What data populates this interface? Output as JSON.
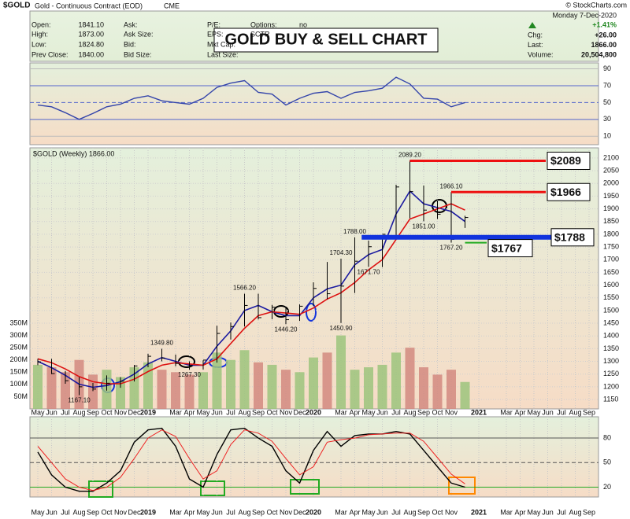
{
  "header": {
    "symbol": "$GOLD",
    "description": "Gold - Continuous Contract (EOD)",
    "exchange": "CME",
    "copyright": "© StockCharts.com",
    "date": "Monday  7-Dec-2020",
    "change_pct": "+1.41%",
    "banner": "GOLD BUY & SELL CHART",
    "info": [
      [
        {
          "label": "Open:",
          "value": "1841.10"
        },
        {
          "label": "High:",
          "value": "1873.00"
        },
        {
          "label": "Low:",
          "value": "1824.80"
        },
        {
          "label": "Prev Close:",
          "value": "1840.00"
        }
      ],
      [
        {
          "label": "Ask:"
        },
        {
          "label": "Ask Size:"
        },
        {
          "label": "Bid:"
        },
        {
          "label": "Bid Size:"
        }
      ],
      [
        {
          "label": "P/E:"
        },
        {
          "label": "EPS:"
        },
        {
          "label": "Mkt Cap:"
        },
        {
          "label": "Last Size:"
        }
      ],
      [
        {
          "label": "Options:",
          "value": "no"
        },
        {
          "label": "SCTR"
        }
      ]
    ],
    "quote": [
      {
        "label": "Chg:",
        "value": "+26.00"
      },
      {
        "label": "Last:",
        "value": "1866.00"
      },
      {
        "label": "Volume:",
        "value": "20,504,800"
      }
    ]
  },
  "chart_data": [
    {
      "type": "line",
      "ylim": [
        0,
        97
      ],
      "yticks": [
        90,
        70,
        50,
        30,
        10
      ],
      "series": [
        {
          "color": "#3344aa",
          "values": [
            47,
            45,
            38,
            30,
            37,
            45,
            48,
            55,
            58,
            52,
            50,
            48,
            55,
            68,
            73,
            76,
            62,
            60,
            47,
            55,
            61,
            63,
            55,
            62,
            64,
            67,
            80,
            72,
            55,
            54,
            45,
            50,
            null,
            null,
            null,
            null,
            null,
            null,
            null,
            null,
            null
          ]
        }
      ]
    },
    {
      "type": "ohlc",
      "title": "$GOLD (Weekly) 1866.00",
      "ylim": [
        1113,
        2140
      ],
      "yticks": [
        1150,
        1200,
        1250,
        1300,
        1350,
        1400,
        1450,
        1500,
        1550,
        1600,
        1650,
        1700,
        1750,
        1800,
        1850,
        1900,
        1950,
        2000,
        2050,
        2100
      ],
      "categories": [
        "May",
        "Jun",
        "Jul",
        "Aug",
        "Sep",
        "Oct",
        "Nov",
        "Dec",
        "2019",
        null,
        "Mar",
        "Apr",
        "May",
        "Jun",
        "Jul",
        "Aug",
        "Sep",
        "Oct",
        "Nov",
        "Dec",
        "2020",
        null,
        "Mar",
        "Apr",
        "May",
        "Jun",
        "Jul",
        "Aug",
        "Sep",
        "Oct",
        "Nov",
        null,
        "2021",
        null,
        "Mar",
        "Apr",
        "May",
        "Jun",
        "Jul",
        "Aug",
        "Sep"
      ],
      "high": [
        1310,
        1310,
        1262,
        1238,
        1215,
        1245,
        1238,
        1286,
        1330,
        1349.8,
        1327,
        1300,
        1304,
        1440,
        1453,
        1566.2,
        1566,
        1522,
        1515,
        1524,
        1611,
        1691,
        1704.3,
        1788,
        1775,
        1796,
        1995,
        2089.2,
        1992,
        1933,
        1966.1,
        1873,
        null,
        null,
        null,
        null,
        null,
        null,
        null,
        null,
        null
      ],
      "low": [
        1285,
        1250,
        1212,
        1167.1,
        1183,
        1185,
        1196,
        1221,
        1277,
        1300,
        1281,
        1267.3,
        1268,
        1295,
        1386,
        1437,
        1465,
        1466,
        1446.2,
        1459,
        1518,
        1545,
        1450.9,
        1569,
        1671.7,
        1671,
        1782,
        1863,
        1851,
        1860,
        1767.2,
        1824.8,
        null,
        null,
        null,
        null,
        null,
        null,
        null,
        null,
        null
      ],
      "close": [
        1298,
        1252,
        1224,
        1200,
        1191,
        1214,
        1222,
        1282,
        1320,
        1313,
        1292,
        1284,
        1305,
        1410,
        1437,
        1520,
        1472,
        1513,
        1464,
        1517,
        1587,
        1566,
        1596,
        1694,
        1751,
        1800,
        1986,
        1968,
        1895,
        1879,
        1780,
        1866,
        null,
        null,
        null,
        null,
        null,
        null,
        null,
        null,
        null
      ],
      "series": [
        {
          "color": "#1a1aa0",
          "values": [
            1300,
            1275,
            1245,
            1210,
            1198,
            1205,
            1220,
            1250,
            1290,
            1315,
            1300,
            1285,
            1285,
            1360,
            1420,
            1500,
            1520,
            1495,
            1480,
            1480,
            1550,
            1585,
            1600,
            1680,
            1720,
            1740,
            1880,
            1970,
            1920,
            1905,
            1890,
            1850,
            null,
            null,
            null,
            null,
            null,
            null,
            null,
            null,
            null
          ]
        },
        {
          "color": "#dd1111",
          "values": [
            1310,
            1295,
            1270,
            1240,
            1220,
            1212,
            1212,
            1230,
            1260,
            1285,
            1295,
            1290,
            1285,
            1310,
            1370,
            1430,
            1480,
            1495,
            1490,
            1485,
            1510,
            1545,
            1570,
            1610,
            1660,
            1700,
            1780,
            1860,
            1880,
            1900,
            1920,
            1895,
            null,
            null,
            null,
            null,
            null,
            null,
            null,
            null,
            null
          ]
        }
      ],
      "volume": {
        "ylim": [
          0,
          350000000
        ],
        "yticks": [
          {
            "value": 50000000,
            "label": "50M"
          },
          {
            "value": 100000000,
            "label": "100M"
          },
          {
            "value": 150000000,
            "label": "150M"
          },
          {
            "value": 200000000,
            "label": "200M"
          },
          {
            "value": 250000000,
            "label": "250M"
          },
          {
            "value": 300000000,
            "label": "300M"
          },
          {
            "value": 350000000,
            "label": "350M"
          }
        ],
        "values": [
          180000000,
          170000000,
          150000000,
          200000000,
          140000000,
          160000000,
          130000000,
          170000000,
          190000000,
          160000000,
          150000000,
          140000000,
          150000000,
          230000000,
          200000000,
          240000000,
          190000000,
          180000000,
          160000000,
          150000000,
          210000000,
          230000000,
          300000000,
          160000000,
          170000000,
          180000000,
          230000000,
          250000000,
          170000000,
          140000000,
          160000000,
          110000000,
          null,
          null,
          null,
          null,
          null,
          null,
          null,
          null,
          null
        ]
      },
      "annotations": [
        {
          "label": "2089.20",
          "value": 2089.2,
          "x": 27,
          "side": "above"
        },
        {
          "label": "1966.10",
          "value": 1966.1,
          "x": 30,
          "side": "above"
        },
        {
          "label": "1788.00",
          "value": 1788,
          "x": 23,
          "side": "above"
        },
        {
          "label": "1851.00",
          "value": 1851,
          "x": 28,
          "side": "below"
        },
        {
          "label": "1767.20",
          "value": 1767.2,
          "x": 30,
          "side": "below"
        },
        {
          "label": "1704.30",
          "value": 1704.3,
          "x": 22,
          "side": "above"
        },
        {
          "label": "1671.70",
          "value": 1671.7,
          "x": 24,
          "side": "below"
        },
        {
          "label": "1566.20",
          "value": 1566.2,
          "x": 15,
          "side": "above"
        },
        {
          "label": "1446.20",
          "value": 1446.2,
          "x": 18,
          "side": "below"
        },
        {
          "label": "1450.90",
          "value": 1450.9,
          "x": 22,
          "side": "below"
        },
        {
          "label": "1349.80",
          "value": 1349.8,
          "x": 9,
          "side": "above"
        },
        {
          "label": "1267.30",
          "value": 1267.3,
          "x": 11,
          "side": "below"
        },
        {
          "label": "1167.10",
          "value": 1167.1,
          "x": 3,
          "side": "below"
        }
      ],
      "levels": [
        {
          "label": "$2089",
          "value": 2089,
          "x": 27,
          "color": "#ee1111"
        },
        {
          "label": "$1966",
          "value": 1966,
          "x": 30,
          "color": "#ee1111"
        },
        {
          "label": "$1788",
          "value": 1788,
          "x": 23.5,
          "color": "#1133dd"
        },
        {
          "label": "$1767",
          "value": 1767,
          "x": 31,
          "color": "#22aa22"
        }
      ]
    },
    {
      "type": "line",
      "ylim": [
        8,
        106
      ],
      "yticks": [
        80,
        50,
        20
      ],
      "categories": [
        "May",
        "Jun",
        "Jul",
        "Aug",
        "Sep",
        "Oct",
        "Nov",
        "Dec",
        "2019",
        null,
        "Mar",
        "Apr",
        "May",
        "Jun",
        "Jul",
        "Aug",
        "Sep",
        "Oct",
        "Nov",
        "Dec",
        "2020",
        null,
        "Mar",
        "Apr",
        "May",
        "Jun",
        "Jul",
        "Aug",
        "Sep",
        "Oct",
        "Nov",
        null,
        "2021",
        null,
        "Mar",
        "Apr",
        "May",
        "Jun",
        "Jul",
        "Aug",
        "Sep"
      ],
      "series": [
        {
          "color": "#000000",
          "values": [
            63,
            35,
            20,
            15,
            15,
            25,
            40,
            75,
            90,
            92,
            70,
            30,
            20,
            60,
            90,
            92,
            80,
            70,
            40,
            25,
            65,
            88,
            70,
            83,
            85,
            85,
            88,
            85,
            65,
            45,
            25,
            20,
            null,
            null,
            null,
            null,
            null,
            null,
            null,
            null,
            null
          ]
        },
        {
          "color": "#ee2222",
          "values": [
            70,
            50,
            30,
            20,
            16,
            20,
            32,
            55,
            80,
            90,
            82,
            55,
            30,
            40,
            72,
            90,
            86,
            76,
            55,
            35,
            45,
            75,
            78,
            80,
            84,
            85,
            86,
            86,
            76,
            56,
            36,
            24,
            null,
            null,
            null,
            null,
            null,
            null,
            null,
            null,
            null
          ]
        }
      ]
    }
  ]
}
